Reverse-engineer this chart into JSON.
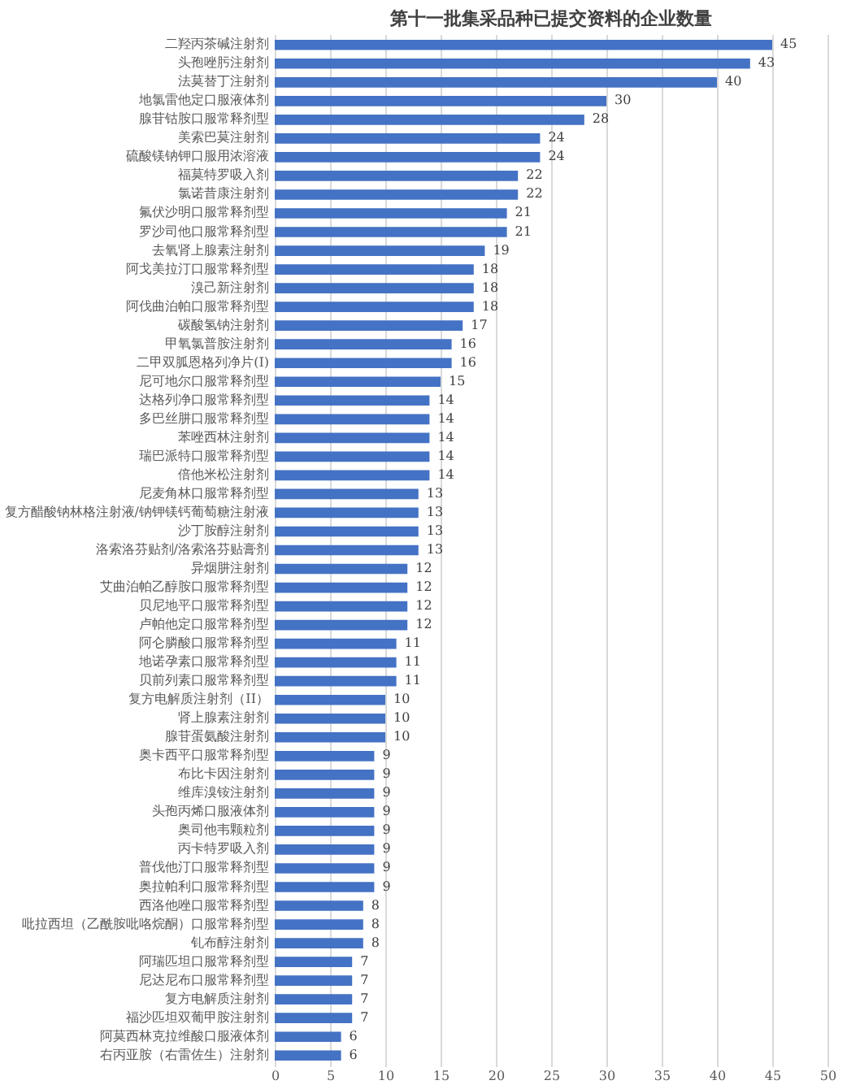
{
  "chart_data": {
    "type": "bar",
    "orientation": "horizontal",
    "title": "第十一批集采品种已提交资料的企业数量",
    "categories": [
      "二羟丙茶碱注射剂",
      "头孢唑肟注射剂",
      "法莫替丁注射剂",
      "地氯雷他定口服液体剂",
      "腺苷钴胺口服常释剂型",
      "美索巴莫注射剂",
      "硫酸镁钠钾口服用浓溶液",
      "福莫特罗吸入剂",
      "氯诺昔康注射剂",
      "氟伏沙明口服常释剂型",
      "罗沙司他口服常释剂型",
      "去氧肾上腺素注射剂",
      "阿戈美拉汀口服常释剂型",
      "溴己新注射剂",
      "阿伐曲泊帕口服常释剂型",
      "碳酸氢钠注射剂",
      "甲氧氯普胺注射剂",
      "二甲双胍恩格列净片(I)",
      "尼可地尔口服常释剂型",
      "达格列净口服常释剂型",
      "多巴丝肼口服常释剂型",
      "苯唑西林注射剂",
      "瑞巴派特口服常释剂型",
      "倍他米松注射剂",
      "尼麦角林口服常释剂型",
      "复方醋酸钠林格注射液/钠钾镁钙葡萄糖注射液",
      "沙丁胺醇注射剂",
      "洛索洛芬贴剂/洛索洛芬贴膏剂",
      "异烟肼注射剂",
      "艾曲泊帕乙醇胺口服常释剂型",
      "贝尼地平口服常释剂型",
      "卢帕他定口服常释剂型",
      "阿仑膦酸口服常释剂型",
      "地诺孕素口服常释剂型",
      "贝前列素口服常释剂型",
      "复方电解质注射剂（II）",
      "肾上腺素注射剂",
      "腺苷蛋氨酸注射剂",
      "奥卡西平口服常释剂型",
      "布比卡因注射剂",
      "维库溴铵注射剂",
      "头孢丙烯口服液体剂",
      "奥司他韦颗粒剂",
      "丙卡特罗吸入剂",
      "普伐他汀口服常释剂型",
      "奥拉帕利口服常释剂型",
      "西洛他唑口服常释剂型",
      "吡拉西坦（乙酰胺吡咯烷酮）口服常释剂型",
      "钆布醇注射剂",
      "阿瑞匹坦口服常释剂型",
      "尼达尼布口服常释剂型",
      "复方电解质注射剂",
      "福沙匹坦双葡甲胺注射剂",
      "阿莫西林克拉维酸口服液体剂",
      "右丙亚胺（右雷佐生）注射剂"
    ],
    "values": [
      45,
      43,
      40,
      30,
      28,
      24,
      24,
      22,
      22,
      21,
      21,
      19,
      18,
      18,
      18,
      17,
      16,
      16,
      15,
      14,
      14,
      14,
      14,
      14,
      13,
      13,
      13,
      13,
      12,
      12,
      12,
      12,
      11,
      11,
      11,
      10,
      10,
      10,
      9,
      9,
      9,
      9,
      9,
      9,
      9,
      9,
      8,
      8,
      8,
      7,
      7,
      7,
      7,
      6,
      6
    ],
    "color": "#4472c4",
    "xlim": [
      0,
      50
    ],
    "xticks": [
      0,
      5,
      10,
      15,
      20,
      25,
      30,
      35,
      40,
      45,
      50
    ],
    "grid": "x",
    "data_labels": true
  }
}
